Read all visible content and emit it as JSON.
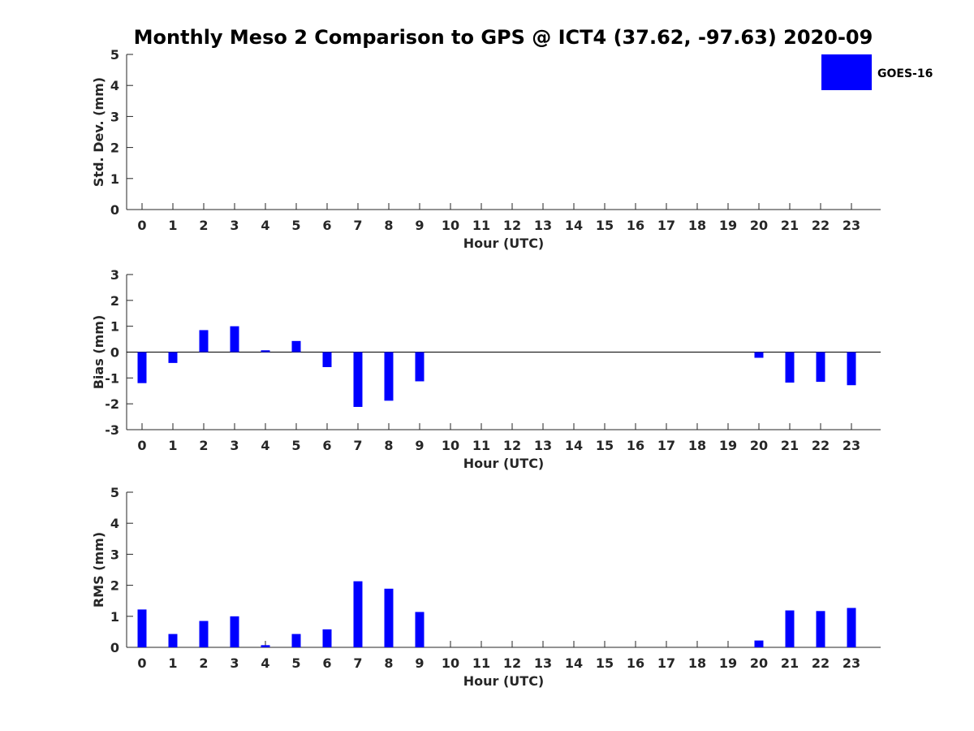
{
  "title": "Monthly Meso 2 Comparison to GPS @ ICT4 (37.62, -97.63) 2020-09",
  "legend": {
    "label": "GOES-16",
    "color": "#0000ff",
    "placement": "top-right"
  },
  "chart_data": [
    {
      "type": "bar",
      "name": "std-dev",
      "xlabel": "Hour (UTC)",
      "ylabel": "Std. Dev. (mm)",
      "ylim": [
        0,
        5
      ],
      "yticks": [
        "0",
        "1",
        "2",
        "3",
        "4",
        "5"
      ],
      "categories": [
        "0",
        "1",
        "2",
        "3",
        "4",
        "5",
        "6",
        "7",
        "8",
        "9",
        "10",
        "11",
        "12",
        "13",
        "14",
        "15",
        "16",
        "17",
        "18",
        "19",
        "20",
        "21",
        "22",
        "23"
      ],
      "series": [
        {
          "name": "GOES-16",
          "color": "#0000ff",
          "values": [
            0,
            0,
            0,
            0,
            0,
            0,
            0,
            0,
            0,
            0,
            0,
            0,
            0,
            0,
            0,
            0,
            0,
            0,
            0,
            0,
            0,
            0,
            0,
            0
          ]
        }
      ],
      "zero_line": false
    },
    {
      "type": "bar",
      "name": "bias",
      "xlabel": "Hour (UTC)",
      "ylabel": "Bias (mm)",
      "ylim": [
        -3,
        3
      ],
      "yticks": [
        "-3",
        "-2",
        "-1",
        "0",
        "1",
        "2",
        "3"
      ],
      "categories": [
        "0",
        "1",
        "2",
        "3",
        "4",
        "5",
        "6",
        "7",
        "8",
        "9",
        "10",
        "11",
        "12",
        "13",
        "14",
        "15",
        "16",
        "17",
        "18",
        "19",
        "20",
        "21",
        "22",
        "23"
      ],
      "series": [
        {
          "name": "GOES-16",
          "color": "#0000ff",
          "values": [
            -1.2,
            -0.42,
            0.85,
            1.0,
            0.07,
            0.43,
            -0.58,
            -2.12,
            -1.88,
            -1.13,
            0,
            0,
            0,
            0,
            0,
            0,
            0,
            0,
            0,
            0,
            -0.22,
            -1.18,
            -1.15,
            -1.28
          ]
        }
      ],
      "zero_line": true
    },
    {
      "type": "bar",
      "name": "rms",
      "xlabel": "Hour (UTC)",
      "ylabel": "RMS (mm)",
      "ylim": [
        0,
        5
      ],
      "yticks": [
        "0",
        "1",
        "2",
        "3",
        "4",
        "5"
      ],
      "categories": [
        "0",
        "1",
        "2",
        "3",
        "4",
        "5",
        "6",
        "7",
        "8",
        "9",
        "10",
        "11",
        "12",
        "13",
        "14",
        "15",
        "16",
        "17",
        "18",
        "19",
        "20",
        "21",
        "22",
        "23"
      ],
      "series": [
        {
          "name": "GOES-16",
          "color": "#0000ff",
          "values": [
            1.22,
            0.43,
            0.85,
            1.0,
            0.07,
            0.43,
            0.58,
            2.13,
            1.89,
            1.14,
            0,
            0,
            0,
            0,
            0,
            0,
            0,
            0,
            0,
            0,
            0.22,
            1.19,
            1.17,
            1.27
          ]
        }
      ],
      "zero_line": false
    }
  ]
}
